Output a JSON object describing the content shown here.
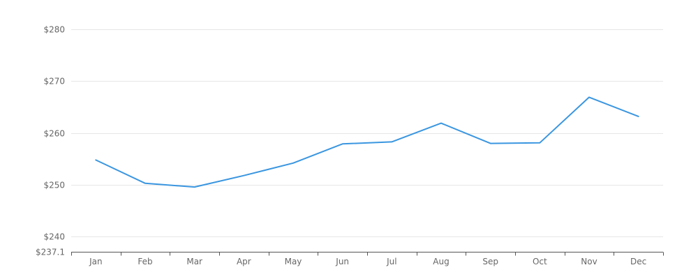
{
  "chart_data": {
    "type": "line",
    "title": "",
    "xlabel": "",
    "ylabel": "",
    "categories": [
      "Jan",
      "Feb",
      "Mar",
      "Apr",
      "May",
      "Jun",
      "Jul",
      "Aug",
      "Sep",
      "Oct",
      "Nov",
      "Dec"
    ],
    "series": [
      {
        "values": [
          254.8,
          250.3,
          249.6,
          251.8,
          254.2,
          257.9,
          258.3,
          261.9,
          258.0,
          258.1,
          266.9,
          263.2
        ],
        "color": "#3a96e0"
      }
    ],
    "ylim": [
      237.1,
      280
    ],
    "y_ticks": [
      237.1,
      240,
      250,
      260,
      270,
      280
    ],
    "y_tick_labels": [
      "$237.1",
      "$240",
      "$250",
      "$260",
      "$270",
      "$280"
    ],
    "grid": true,
    "legend": "none"
  }
}
